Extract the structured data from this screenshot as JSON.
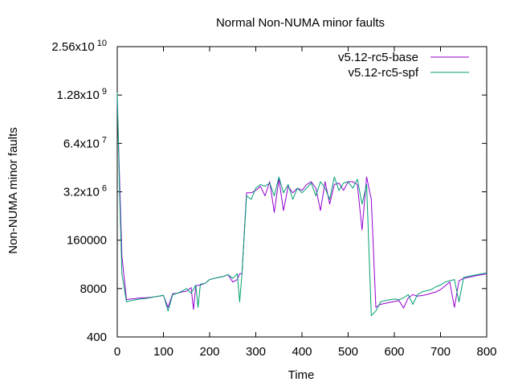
{
  "chart_data": {
    "type": "line",
    "title": "Normal Non-NUMA minor faults",
    "xlabel": "Time",
    "ylabel": "Non-NUMA minor faults",
    "xlim": [
      0,
      800
    ],
    "ylim": [
      400,
      25600000000
    ],
    "yscale": "log",
    "grid": false,
    "legend_position": "top-right",
    "x_ticks": [
      {
        "value": 0,
        "label": "0"
      },
      {
        "value": 100,
        "label": "100"
      },
      {
        "value": 200,
        "label": "200"
      },
      {
        "value": 300,
        "label": "300"
      },
      {
        "value": 400,
        "label": "400"
      },
      {
        "value": 500,
        "label": "500"
      },
      {
        "value": 600,
        "label": "600"
      },
      {
        "value": 700,
        "label": "700"
      },
      {
        "value": 800,
        "label": "800"
      }
    ],
    "y_ticks": [
      {
        "value": 400,
        "label": "400",
        "sup": ""
      },
      {
        "value": 8000,
        "label": "8000",
        "sup": ""
      },
      {
        "value": 160000,
        "label": "160000",
        "sup": ""
      },
      {
        "value": 3200000,
        "label": "3.2x10",
        "sup": "6"
      },
      {
        "value": 64000000,
        "label": "6.4x10",
        "sup": "7"
      },
      {
        "value": 1280000000,
        "label": "1.28x10",
        "sup": "9"
      },
      {
        "value": 25600000000,
        "label": "2.56x10",
        "sup": "10"
      }
    ],
    "series": [
      {
        "name": "v5.12-rc5-base",
        "color": "#9400d3",
        "x": [
          0,
          5,
          10,
          20,
          30,
          40,
          50,
          60,
          70,
          80,
          90,
          100,
          110,
          120,
          130,
          140,
          150,
          160,
          165,
          170,
          180,
          190,
          200,
          210,
          220,
          230,
          240,
          250,
          260,
          265,
          270,
          280,
          290,
          300,
          310,
          320,
          330,
          340,
          350,
          360,
          370,
          380,
          390,
          400,
          410,
          420,
          430,
          440,
          450,
          460,
          470,
          480,
          490,
          500,
          510,
          520,
          530,
          540,
          550,
          560,
          570,
          580,
          590,
          600,
          610,
          620,
          630,
          640,
          650,
          660,
          670,
          680,
          690,
          700,
          710,
          720,
          730,
          740,
          750,
          760,
          770,
          780,
          790,
          800
        ],
        "y": [
          900000000,
          7000000,
          60000,
          4000,
          4200,
          4300,
          4500,
          4500,
          4600,
          4800,
          5000,
          5200,
          2500,
          5800,
          6000,
          6500,
          6800,
          8500,
          2200,
          9500,
          10000,
          11000,
          14000,
          15000,
          16000,
          17000,
          19000,
          12000,
          14000,
          20000,
          20000,
          3000000,
          3000000,
          3500000,
          4500000,
          2500000,
          6000000,
          900000,
          7000000,
          1000000,
          4500000,
          3000000,
          4000000,
          3500000,
          5000000,
          6000000,
          4000000,
          1000000,
          6000000,
          1500000,
          5000000,
          5500000,
          3500000,
          6000000,
          6000000,
          5000000,
          300000,
          8000000,
          2000000,
          2500,
          3000,
          3200,
          3400,
          3600,
          3800,
          2400,
          4500,
          5500,
          5000,
          5200,
          5500,
          6000,
          6500,
          7500,
          9500,
          12000,
          2500,
          13000,
          15000,
          16000,
          17000,
          18000,
          19000,
          20000
        ]
      },
      {
        "name": "v5.12-rc5-spf",
        "color": "#009e73",
        "x": [
          0,
          5,
          10,
          20,
          30,
          40,
          50,
          60,
          70,
          80,
          90,
          100,
          110,
          120,
          130,
          140,
          150,
          160,
          170,
          175,
          180,
          190,
          200,
          210,
          220,
          230,
          240,
          250,
          260,
          265,
          270,
          280,
          290,
          300,
          310,
          320,
          330,
          340,
          350,
          360,
          370,
          380,
          390,
          400,
          410,
          420,
          430,
          440,
          450,
          460,
          470,
          480,
          490,
          500,
          510,
          520,
          530,
          540,
          550,
          560,
          570,
          580,
          590,
          600,
          610,
          620,
          630,
          640,
          650,
          660,
          670,
          680,
          690,
          700,
          710,
          720,
          730,
          740,
          750,
          760,
          770,
          780,
          790,
          800
        ],
        "y": [
          1500000000,
          3000000,
          20000,
          3500,
          3800,
          4000,
          4200,
          4300,
          4500,
          4800,
          5000,
          5300,
          2000,
          5500,
          6000,
          6800,
          8000,
          6000,
          10000,
          2500,
          10500,
          11000,
          14000,
          15000,
          16000,
          17000,
          19000,
          15000,
          20000,
          3500,
          20000,
          2500000,
          2000000,
          4000000,
          5000000,
          4500000,
          5500000,
          2500000,
          8000000,
          3000000,
          5000000,
          2000000,
          4000000,
          3000000,
          4000000,
          5500000,
          2500000,
          6000000,
          4000000,
          2000000,
          8000000,
          3500000,
          5500000,
          6000000,
          4000000,
          7000000,
          1500000,
          5000000,
          1500,
          2000,
          3500,
          3800,
          4000,
          4200,
          4000,
          4500,
          5500,
          3000,
          5500,
          6500,
          7000,
          7500,
          9000,
          10000,
          12000,
          13000,
          14000,
          3500,
          16000,
          17000,
          18000,
          19000,
          20000,
          21000
        ]
      }
    ]
  }
}
